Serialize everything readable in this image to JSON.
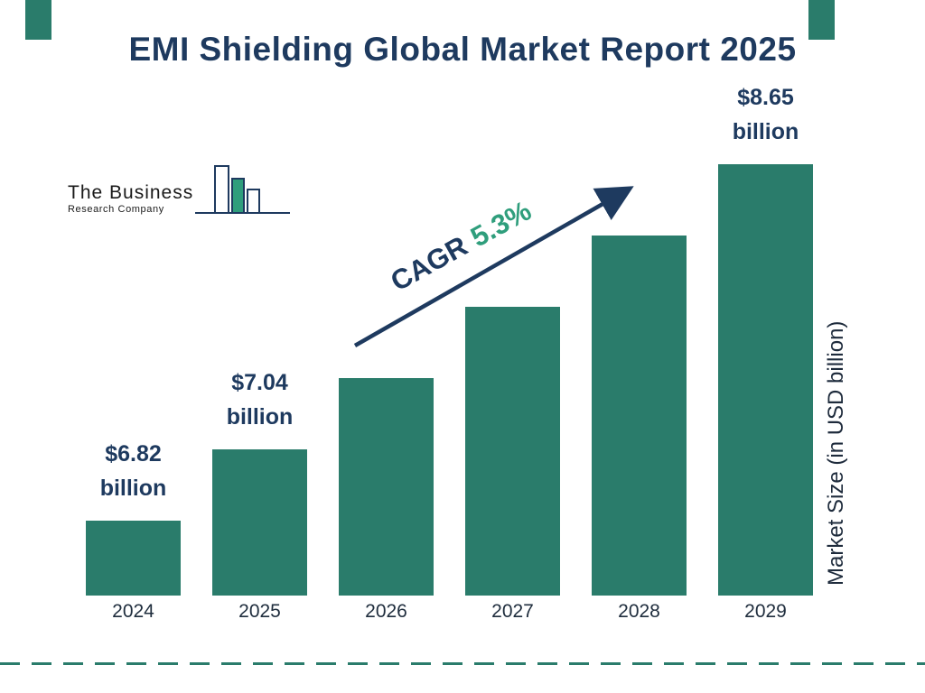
{
  "page": {
    "title": "EMI Shielding Global Market Report 2025"
  },
  "logo": {
    "line1": "The Business",
    "line2": "Research Company"
  },
  "cagr": {
    "label": "CAGR",
    "value": "5.3%"
  },
  "colors": {
    "bar": "#2a7c6b",
    "navy": "#1e3a5f",
    "green": "#2f9e7c"
  },
  "chart_data": {
    "type": "bar",
    "title": "EMI Shielding Global Market Report 2025",
    "categories": [
      "2024",
      "2025",
      "2026",
      "2027",
      "2028",
      "2029"
    ],
    "values": [
      6.82,
      7.04,
      7.41,
      7.8,
      8.22,
      8.65
    ],
    "value_labels": [
      "$6.82 billion",
      "$7.04 billion",
      null,
      null,
      null,
      "$8.65 billion"
    ],
    "xlabel": "",
    "ylabel": "Market Size (in USD billion)",
    "annotation": "CAGR 5.3%",
    "legend": "none",
    "grid": false,
    "ylim": [
      0,
      9
    ]
  }
}
